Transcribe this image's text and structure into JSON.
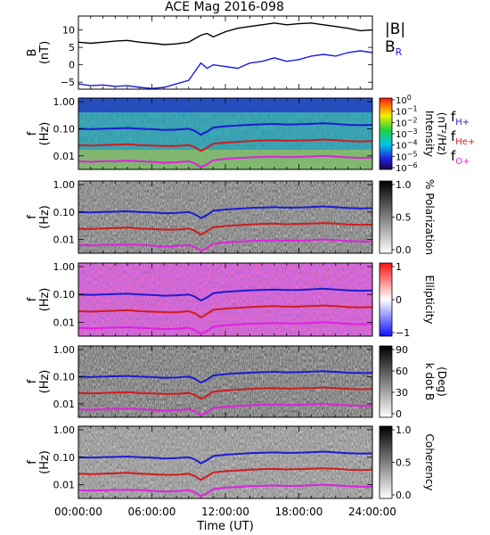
{
  "title": "ACE Mag 2016-098",
  "x_axis": {
    "label": "Time (UT)",
    "ticks": [
      "00:00:00",
      "06:00:00",
      "12:00:00",
      "18:00:00",
      "24:00:00"
    ],
    "range_hours": [
      0,
      24
    ]
  },
  "legend_b": {
    "total": "|B|",
    "radial": "B",
    "radial_sub": "R"
  },
  "legend_f": [
    {
      "label": "f",
      "sub": "H+",
      "color": "#1c1cd0"
    },
    {
      "label": "f",
      "sub": "He+",
      "color": "#d01c1c"
    },
    {
      "label": "f",
      "sub": "O+",
      "color": "#e020e0"
    }
  ],
  "colors": {
    "btotal": "#000000",
    "bradial": "#1a1ae6",
    "f_h": "#1c1cd0",
    "f_he": "#d01c1c",
    "f_o": "#e020e0"
  },
  "panels": [
    {
      "id": "b",
      "ylabel": "B",
      "yunit": "(nT)",
      "yticks": [
        "10",
        "5",
        "0",
        "−5"
      ],
      "ylim": [
        -7,
        14
      ]
    },
    {
      "id": "intensity",
      "ylabel": "f",
      "yunit": "(Hz)",
      "yticks": [
        "1.00",
        "0.10",
        "0.01"
      ],
      "cbar_label": "Intensity",
      "cbar_unit": "(nT²/Hz)",
      "cbar_ticks": [
        {
          "base": "10",
          "exp": "0"
        },
        {
          "base": "10",
          "exp": "−1"
        },
        {
          "base": "10",
          "exp": "−2"
        },
        {
          "base": "10",
          "exp": "−3"
        },
        {
          "base": "10",
          "exp": "−4"
        },
        {
          "base": "10",
          "exp": "−5"
        },
        {
          "base": "10",
          "exp": "−6"
        }
      ]
    },
    {
      "id": "polarization",
      "ylabel": "f",
      "yunit": "(Hz)",
      "yticks": [
        "1.00",
        "0.10",
        "0.01"
      ],
      "cbar_label": "% Polarization",
      "cbar_ticks": [
        "1.0",
        "0.5",
        "0.0"
      ]
    },
    {
      "id": "ellipticity",
      "ylabel": "f",
      "yunit": "(Hz)",
      "yticks": [
        "1.00",
        "0.10",
        "0.01"
      ],
      "cbar_label": "Ellipticity",
      "cbar_ticks": [
        "1",
        "0",
        "−1"
      ]
    },
    {
      "id": "kdotb",
      "ylabel": "f",
      "yunit": "(Hz)",
      "yticks": [
        "1.00",
        "0.10",
        "0.01"
      ],
      "cbar_label": "k dot B",
      "cbar_unit": "(Deg)",
      "cbar_ticks": [
        "90",
        "60",
        "30",
        "0"
      ]
    },
    {
      "id": "coherency",
      "ylabel": "f",
      "yunit": "(Hz)",
      "yticks": [
        "1.00",
        "0.10",
        "0.01"
      ],
      "cbar_label": "Coherency",
      "cbar_ticks": [
        "1.0",
        "0.5",
        "0.0"
      ]
    }
  ],
  "chart_data": {
    "type": "line",
    "x_unit": "hours UT",
    "b_field": {
      "ylim": [
        -7,
        14
      ],
      "series": [
        {
          "name": "|B|",
          "x": [
            0,
            1,
            2,
            3,
            4,
            5,
            6,
            7,
            8,
            9,
            9.5,
            10,
            10.5,
            11,
            12,
            13,
            14,
            15,
            16,
            17,
            18,
            19,
            20,
            21,
            22,
            23,
            24
          ],
          "values": [
            6.5,
            6.2,
            6.5,
            6.8,
            7.0,
            6.5,
            6.2,
            5.8,
            6.0,
            6.5,
            7.5,
            8.5,
            9.0,
            8.0,
            9.5,
            10.5,
            11.0,
            11.5,
            12.0,
            11.5,
            11.8,
            12.0,
            11.5,
            11.0,
            10.5,
            9.8,
            10.0
          ]
        },
        {
          "name": "B",
          "x": [
            0,
            1,
            2,
            3,
            4,
            5,
            6,
            7,
            8,
            9,
            9.5,
            10,
            10.5,
            11,
            12,
            13,
            14,
            15,
            16,
            17,
            18,
            19,
            20,
            21,
            22,
            23,
            24
          ],
          "values": [
            -5.5,
            -6.0,
            -5.8,
            -6.2,
            -6.0,
            -6.5,
            -6.8,
            -6.5,
            -5.5,
            -4.5,
            -2.0,
            0.5,
            -1.0,
            0.0,
            -0.5,
            -1.0,
            0.5,
            1.0,
            2.0,
            1.0,
            1.5,
            2.5,
            3.0,
            2.5,
            3.5,
            4.0,
            3.5
          ]
        }
      ]
    },
    "gyrofrequency": {
      "x": [
        0,
        1,
        2,
        3,
        4,
        5,
        6,
        7,
        8,
        9,
        9.5,
        10,
        10.5,
        11,
        12,
        13,
        14,
        15,
        16,
        17,
        18,
        19,
        20,
        21,
        22,
        23,
        24
      ],
      "series": [
        {
          "name": "H+",
          "values": [
            0.1,
            0.096,
            0.1,
            0.103,
            0.106,
            0.1,
            0.096,
            0.09,
            0.093,
            0.1,
            0.084,
            0.06,
            0.078,
            0.11,
            0.124,
            0.132,
            0.14,
            0.146,
            0.15,
            0.144,
            0.146,
            0.152,
            0.16,
            0.15,
            0.14,
            0.135,
            0.138
          ]
        },
        {
          "name": "He+",
          "values": [
            0.025,
            0.024,
            0.025,
            0.026,
            0.027,
            0.025,
            0.024,
            0.023,
            0.023,
            0.025,
            0.021,
            0.015,
            0.02,
            0.028,
            0.031,
            0.033,
            0.035,
            0.037,
            0.038,
            0.036,
            0.037,
            0.038,
            0.04,
            0.038,
            0.035,
            0.034,
            0.035
          ]
        },
        {
          "name": "O+",
          "values": [
            0.0063,
            0.006,
            0.0063,
            0.0064,
            0.0066,
            0.0063,
            0.006,
            0.0056,
            0.0058,
            0.0063,
            0.0053,
            0.0038,
            0.0049,
            0.0069,
            0.0078,
            0.0083,
            0.0088,
            0.0091,
            0.0094,
            0.009,
            0.0091,
            0.0095,
            0.01,
            0.0094,
            0.0088,
            0.0084,
            0.0086
          ]
        }
      ]
    }
  }
}
